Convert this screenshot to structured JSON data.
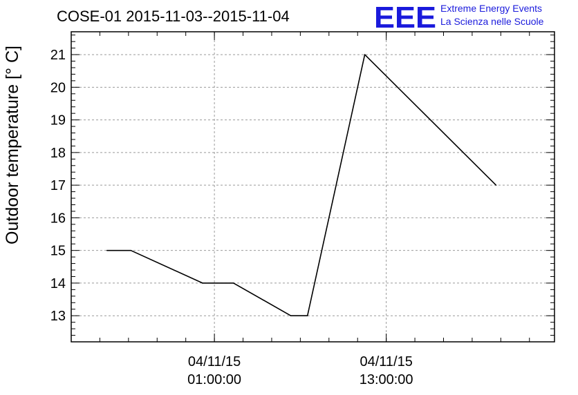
{
  "chart_data": {
    "type": "line",
    "title": "COSE-01 2015-11-03--2015-11-04",
    "xlabel": "",
    "ylabel": "Outdoor temperature [° C]",
    "x_ticks": [
      {
        "x": "2015-11-04 01:00:00",
        "date": "04/11/15",
        "time": "01:00:00"
      },
      {
        "x": "2015-11-04 13:00:00",
        "date": "04/11/15",
        "time": "13:00:00"
      }
    ],
    "ylim": [
      12.2,
      21.7
    ],
    "yticks": [
      13,
      14,
      15,
      16,
      17,
      18,
      19,
      20,
      21
    ],
    "xlim": [
      "2015-11-03 15:00",
      "2015-11-05 00:45"
    ],
    "grid": true,
    "series": [
      {
        "x": [
          "2015-11-03 17:30",
          "2015-11-03 19:10",
          "2015-11-04 00:10",
          "2015-11-04 02:20",
          "2015-11-04 06:20",
          "2015-11-04 07:30",
          "2015-11-04 11:30",
          "2015-11-04 20:40"
        ],
        "y": [
          15,
          15,
          14,
          14,
          13,
          13,
          21,
          17
        ],
        "color": "#000000"
      }
    ]
  },
  "logo": {
    "mark": "EEE",
    "line1": "Extreme Energy Events",
    "line2": "La Scienza nelle Scuole",
    "color": "#1a1adc"
  }
}
